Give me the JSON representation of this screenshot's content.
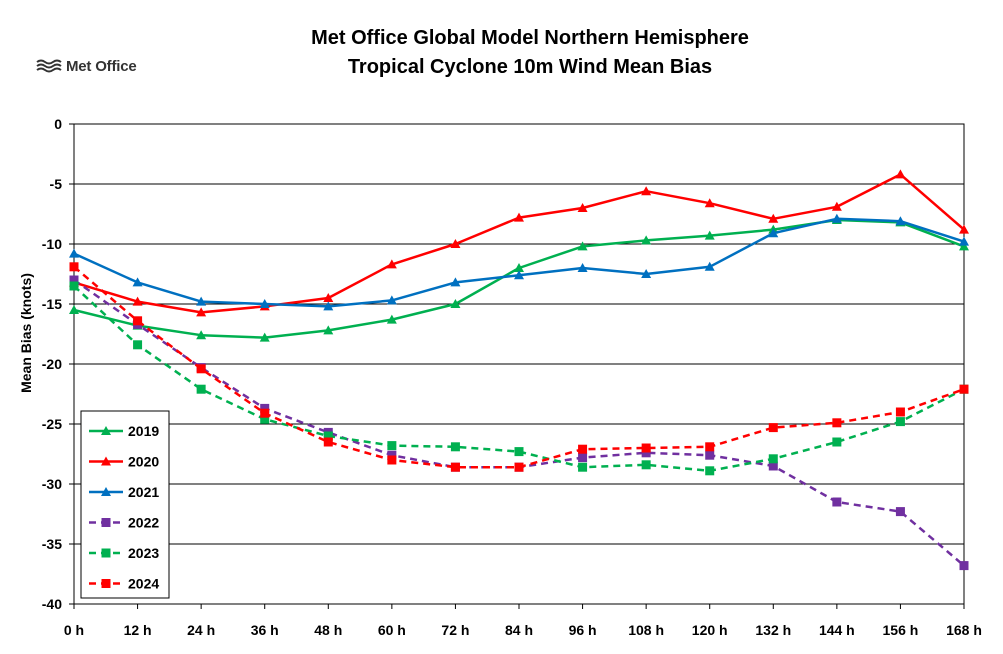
{
  "logo": {
    "text": "Met Office",
    "icon": "met-office-wave-icon"
  },
  "chart_data": {
    "type": "line",
    "title": [
      "Met Office Global Model Northern Hemisphere",
      "Tropical Cyclone 10m Wind Mean Bias"
    ],
    "xlabel": "",
    "ylabel": "Mean Bias (knots)",
    "categories": [
      "0 h",
      "12 h",
      "24 h",
      "36 h",
      "48 h",
      "60 h",
      "72 h",
      "84 h",
      "96 h",
      "108 h",
      "120 h",
      "132 h",
      "144 h",
      "156 h",
      "168 h"
    ],
    "ylim": [
      -40,
      0
    ],
    "yticks": [
      0,
      -5,
      -10,
      -15,
      -20,
      -25,
      -30,
      -35,
      -40
    ],
    "grid": true,
    "legend_position": "bottom-left",
    "series": [
      {
        "name": "2019",
        "color": "#00b050",
        "style": "solid",
        "marker": "triangle",
        "values": [
          -15.5,
          -16.8,
          -17.6,
          -17.8,
          -17.2,
          -16.3,
          -15.0,
          -12.0,
          -10.2,
          -9.7,
          -9.3,
          -8.8,
          -8.0,
          -8.2,
          -10.2
        ]
      },
      {
        "name": "2020",
        "color": "#ff0000",
        "style": "solid",
        "marker": "triangle",
        "values": [
          -13.2,
          -14.8,
          -15.7,
          -15.2,
          -14.5,
          -11.7,
          -10.0,
          -7.8,
          -7.0,
          -5.6,
          -6.6,
          -7.9,
          -6.9,
          -4.2,
          -8.8
        ]
      },
      {
        "name": "2021",
        "color": "#0070c0",
        "style": "solid",
        "marker": "triangle",
        "values": [
          -10.8,
          -13.2,
          -14.8,
          -15.0,
          -15.2,
          -14.7,
          -13.2,
          -12.6,
          -12.0,
          -12.5,
          -11.9,
          -9.1,
          -7.9,
          -8.1,
          -9.8
        ]
      },
      {
        "name": "2022",
        "color": "#7030a0",
        "style": "dashed",
        "marker": "square",
        "values": [
          -13.0,
          -16.7,
          -20.3,
          -23.7,
          -25.7,
          -27.6,
          -28.6,
          -28.6,
          -27.8,
          -27.4,
          -27.6,
          -28.5,
          -31.5,
          -32.3,
          -36.8
        ]
      },
      {
        "name": "2023",
        "color": "#00b050",
        "style": "dashed",
        "marker": "square",
        "values": [
          -13.5,
          -18.4,
          -22.1,
          -24.6,
          -26.0,
          -26.8,
          -26.9,
          -27.3,
          -28.6,
          -28.4,
          -28.9,
          -27.9,
          -26.5,
          -24.8,
          -22.1
        ]
      },
      {
        "name": "2024",
        "color": "#ff0000",
        "style": "dashed",
        "marker": "square",
        "values": [
          -11.9,
          -16.4,
          -20.4,
          -24.1,
          -26.5,
          -28.0,
          -28.6,
          -28.6,
          -27.1,
          -27.0,
          -26.9,
          -25.3,
          -24.9,
          -24.0,
          -22.1
        ]
      }
    ]
  }
}
